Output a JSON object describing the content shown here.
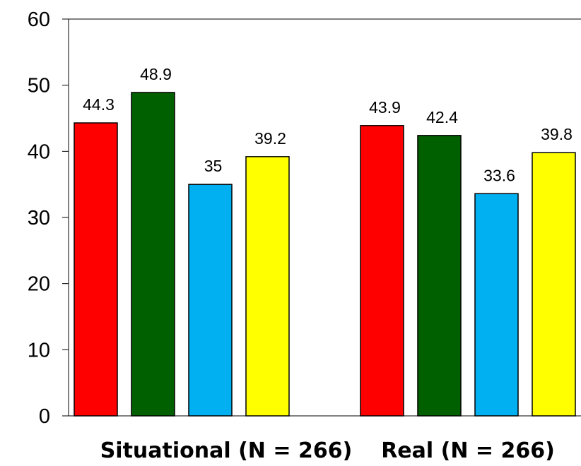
{
  "chart_data": {
    "type": "bar",
    "categories": [
      "Situational (N = 266)",
      "Real (N = 266)"
    ],
    "series": [
      {
        "values": [
          44.3,
          43.9
        ],
        "color": "#ff0000"
      },
      {
        "values": [
          48.9,
          42.4
        ],
        "color": "#006000"
      },
      {
        "values": [
          35,
          33.6
        ],
        "color": "#00b0f0"
      },
      {
        "values": [
          39.2,
          39.8
        ],
        "color": "#ffff00"
      }
    ],
    "data_labels": [
      [
        "44.3",
        "48.9",
        "35",
        "39.2"
      ],
      [
        "43.9",
        "42.4",
        "33.6",
        "39.8"
      ]
    ],
    "ylim": [
      0,
      60
    ],
    "yticks": [
      0,
      10,
      20,
      30,
      40,
      50,
      60
    ],
    "grid": false,
    "legend": "none"
  }
}
